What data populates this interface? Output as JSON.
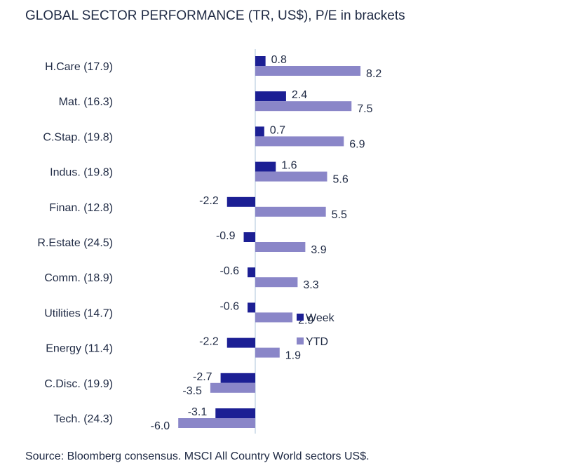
{
  "title": "GLOBAL SECTOR PERFORMANCE (TR, US$), P/E in brackets",
  "source": "Source: Bloomberg consensus. MSCI All Country World sectors US$.",
  "colors": {
    "week": "#1c1f94",
    "ytd": "#8a86c8",
    "axis": "#c7d7e6",
    "text": "#1f2a44"
  },
  "chart_data": {
    "type": "bar",
    "orientation": "horizontal",
    "title": "GLOBAL SECTOR PERFORMANCE (TR, US$), P/E in brackets",
    "categories": [
      "H.Care (17.9)",
      "Mat. (16.3)",
      "C.Stap. (19.8)",
      "Indus. (19.8)",
      "Finan. (12.8)",
      "R.Estate (24.5)",
      "Comm. (18.9)",
      "Utilities (14.7)",
      "Energy (11.4)",
      "C.Disc. (19.9)",
      "Tech. (24.3)"
    ],
    "series": [
      {
        "name": "Week",
        "values": [
          0.8,
          2.4,
          0.7,
          1.6,
          -2.2,
          -0.9,
          -0.6,
          -0.6,
          -2.2,
          -2.7,
          -3.1
        ],
        "labels": [
          "0.8",
          "2.4",
          "0.7",
          "1.6",
          "-2.2",
          "-0.9",
          "-0.6",
          "-0.6",
          "-2.2",
          "-2.7",
          "-3.1"
        ]
      },
      {
        "name": "YTD",
        "values": [
          8.2,
          7.5,
          6.9,
          5.6,
          5.5,
          3.9,
          3.3,
          2.9,
          1.9,
          -3.5,
          -6.0
        ],
        "labels": [
          "8.2",
          "7.5",
          "6.9",
          "5.6",
          "5.5",
          "3.9",
          "3.3",
          "2.9",
          "1.9",
          "-3.5",
          "-6.0"
        ]
      }
    ],
    "legend": "right",
    "grid": false
  }
}
